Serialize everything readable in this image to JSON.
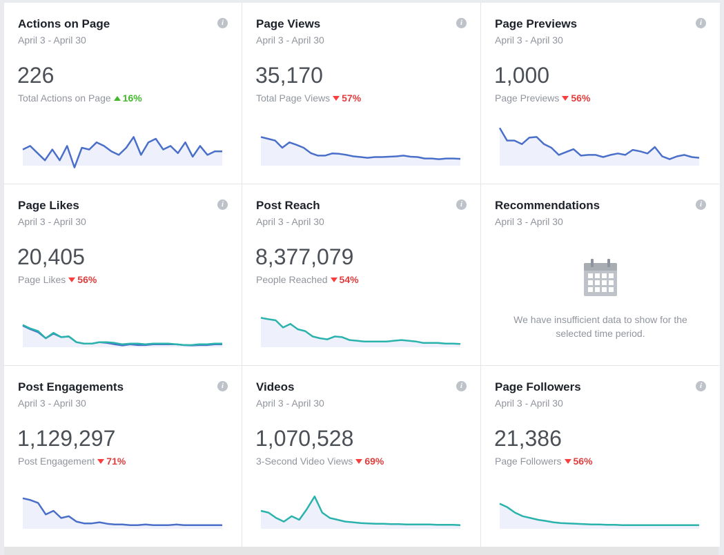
{
  "cards": [
    {
      "title": "Actions on Page",
      "date": "April 3 - April 30",
      "value": "226",
      "metric": "Total Actions on Page",
      "direction": "up",
      "change": "16%",
      "color": "#4a6fc9",
      "fill": "#eef0fb",
      "series": [
        0.45,
        0.55,
        0.35,
        0.15,
        0.45,
        0.15,
        0.55,
        -0.05,
        0.5,
        0.45,
        0.65,
        0.55,
        0.4,
        0.3,
        0.5,
        0.8,
        0.3,
        0.65,
        0.75,
        0.45,
        0.55,
        0.35,
        0.65,
        0.25,
        0.55,
        0.3,
        0.4,
        0.4
      ]
    },
    {
      "title": "Page Views",
      "date": "April 3 - April 30",
      "value": "35,170",
      "metric": "Total Page Views",
      "direction": "down",
      "change": "57%",
      "color": "#4a6fc9",
      "fill": "#eef0fb",
      "series": [
        0.8,
        0.75,
        0.7,
        0.5,
        0.65,
        0.58,
        0.5,
        0.35,
        0.28,
        0.28,
        0.34,
        0.33,
        0.3,
        0.26,
        0.24,
        0.22,
        0.24,
        0.24,
        0.25,
        0.26,
        0.28,
        0.25,
        0.24,
        0.2,
        0.2,
        0.18,
        0.2,
        0.2,
        0.19
      ]
    },
    {
      "title": "Page Previews",
      "date": "April 3 - April 30",
      "value": "1,000",
      "metric": "Page Previews",
      "direction": "down",
      "change": "56%",
      "color": "#4a6fc9",
      "fill": "#eef0fb",
      "series": [
        1.05,
        0.7,
        0.7,
        0.6,
        0.78,
        0.8,
        0.6,
        0.5,
        0.3,
        0.38,
        0.46,
        0.28,
        0.3,
        0.3,
        0.24,
        0.3,
        0.34,
        0.3,
        0.44,
        0.4,
        0.34,
        0.52,
        0.26,
        0.18,
        0.26,
        0.3,
        0.24,
        0.22
      ]
    },
    {
      "title": "Page Likes",
      "date": "April 3 - April 30",
      "value": "20,405",
      "metric": "Page Likes",
      "direction": "down",
      "change": "56%",
      "color": "#2ab2ac",
      "fill": "#eef0fb",
      "series": [
        0.62,
        0.52,
        0.45,
        0.25,
        0.4,
        0.28,
        0.3,
        0.14,
        0.1,
        0.1,
        0.14,
        0.14,
        0.12,
        0.08,
        0.1,
        0.1,
        0.08,
        0.1,
        0.1,
        0.1,
        0.08,
        0.06,
        0.06,
        0.08,
        0.08,
        0.1,
        0.1
      ],
      "series2": [
        0.6,
        0.5,
        0.42,
        0.25,
        0.38,
        0.28,
        0.3,
        0.14,
        0.1,
        0.1,
        0.14,
        0.12,
        0.08,
        0.05,
        0.08,
        0.06,
        0.06,
        0.08,
        0.08,
        0.08,
        0.08,
        0.06,
        0.05,
        0.06,
        0.06,
        0.08,
        0.08
      ]
    },
    {
      "title": "Post Reach",
      "date": "April 3 - April 30",
      "value": "8,377,079",
      "metric": "People Reached",
      "direction": "down",
      "change": "54%",
      "color": "#2ab2ac",
      "fill": "#eef0fb",
      "series": [
        0.82,
        0.78,
        0.75,
        0.55,
        0.65,
        0.5,
        0.45,
        0.3,
        0.25,
        0.22,
        0.3,
        0.28,
        0.2,
        0.18,
        0.16,
        0.16,
        0.16,
        0.16,
        0.18,
        0.2,
        0.18,
        0.16,
        0.12,
        0.12,
        0.12,
        0.1,
        0.1,
        0.09
      ]
    },
    {
      "title": "Recommendations",
      "date": "April 3 - April 30",
      "empty": true,
      "empty_icon": "calendar-icon",
      "empty_message": "We have insufficient data to show for the selected time period."
    },
    {
      "title": "Post Engagements",
      "date": "April 3 - April 30",
      "value": "1,129,297",
      "metric": "Post Engagement",
      "direction": "down",
      "change": "71%",
      "color": "#4a6fc9",
      "fill": "#eef0fb",
      "series": [
        0.85,
        0.8,
        0.72,
        0.4,
        0.5,
        0.3,
        0.35,
        0.2,
        0.15,
        0.15,
        0.18,
        0.14,
        0.12,
        0.12,
        0.1,
        0.1,
        0.12,
        0.1,
        0.1,
        0.1,
        0.12,
        0.1,
        0.1,
        0.1,
        0.1,
        0.1,
        0.1
      ]
    },
    {
      "title": "Videos",
      "date": "April 3 - April 30",
      "value": "1,070,528",
      "metric": "3-Second Video Views",
      "direction": "down",
      "change": "69%",
      "color": "#2ab2ac",
      "fill": "#eef0fb",
      "series": [
        0.5,
        0.45,
        0.3,
        0.2,
        0.35,
        0.25,
        0.55,
        0.9,
        0.45,
        0.3,
        0.25,
        0.2,
        0.18,
        0.16,
        0.15,
        0.14,
        0.14,
        0.13,
        0.13,
        0.12,
        0.12,
        0.12,
        0.12,
        0.11,
        0.11,
        0.11,
        0.1
      ]
    },
    {
      "title": "Page Followers",
      "date": "April 3 - April 30",
      "value": "21,386",
      "metric": "Page Followers",
      "direction": "down",
      "change": "56%",
      "color": "#2ab2ac",
      "fill": "#eef0fb",
      "series": [
        0.7,
        0.6,
        0.45,
        0.35,
        0.3,
        0.25,
        0.22,
        0.18,
        0.16,
        0.15,
        0.14,
        0.13,
        0.12,
        0.12,
        0.11,
        0.11,
        0.1,
        0.1,
        0.1,
        0.1,
        0.1,
        0.1,
        0.1,
        0.1,
        0.1,
        0.1,
        0.1
      ]
    }
  ]
}
